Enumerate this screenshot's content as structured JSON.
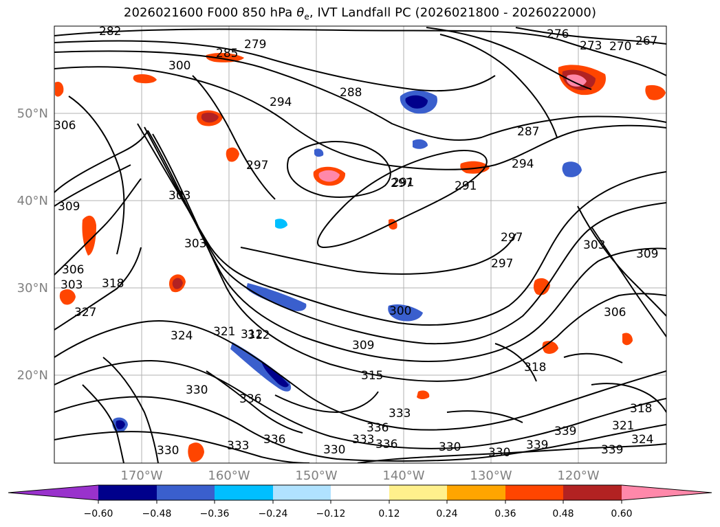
{
  "title_prefix": "2026021600 F000 850 hPa ",
  "title_symbol": "θ",
  "title_sub": "e",
  "title_suffix": ", IVT Landfall PC (2026021800 - 2026022000)",
  "lon_labels": [
    "170°W",
    "160°W",
    "150°W",
    "140°W",
    "130°W",
    "120°W"
  ],
  "lat_labels": [
    "50°N",
    "40°N",
    "30°N",
    "20°N"
  ],
  "colorbar": {
    "ticks": [
      "−0.60",
      "−0.48",
      "−0.36",
      "−0.24",
      "−0.12",
      "0.12",
      "0.24",
      "0.36",
      "0.48",
      "0.60"
    ],
    "colors": [
      "#9932cc",
      "#00008b",
      "#3a5fcd",
      "#00bfff",
      "#b0e2ff",
      "#ffffff",
      "#fff08c",
      "#ffa500",
      "#ff4500",
      "#b22222",
      "#ff88aa"
    ]
  },
  "contour_labels": [
    "282",
    "285",
    "279",
    "300",
    "276",
    "273",
    "270",
    "267",
    "288",
    "294",
    "297",
    "291",
    "297",
    "291",
    "287",
    "294",
    "303",
    "300",
    "309",
    "306",
    "309",
    "306",
    "303",
    "297",
    "297",
    "303",
    "309",
    "306",
    "303",
    "312",
    "321",
    "318",
    "324",
    "327",
    "330",
    "333",
    "336",
    "330",
    "333",
    "336",
    "339",
    "339",
    "330",
    "318",
    "312",
    "315",
    "336",
    "330",
    "333",
    "336",
    "330",
    "339",
    "318",
    "321",
    "324"
  ],
  "colors": {
    "grid": "#b0b0b0",
    "contour": "#000000",
    "land_bg": "#ffffff"
  }
}
